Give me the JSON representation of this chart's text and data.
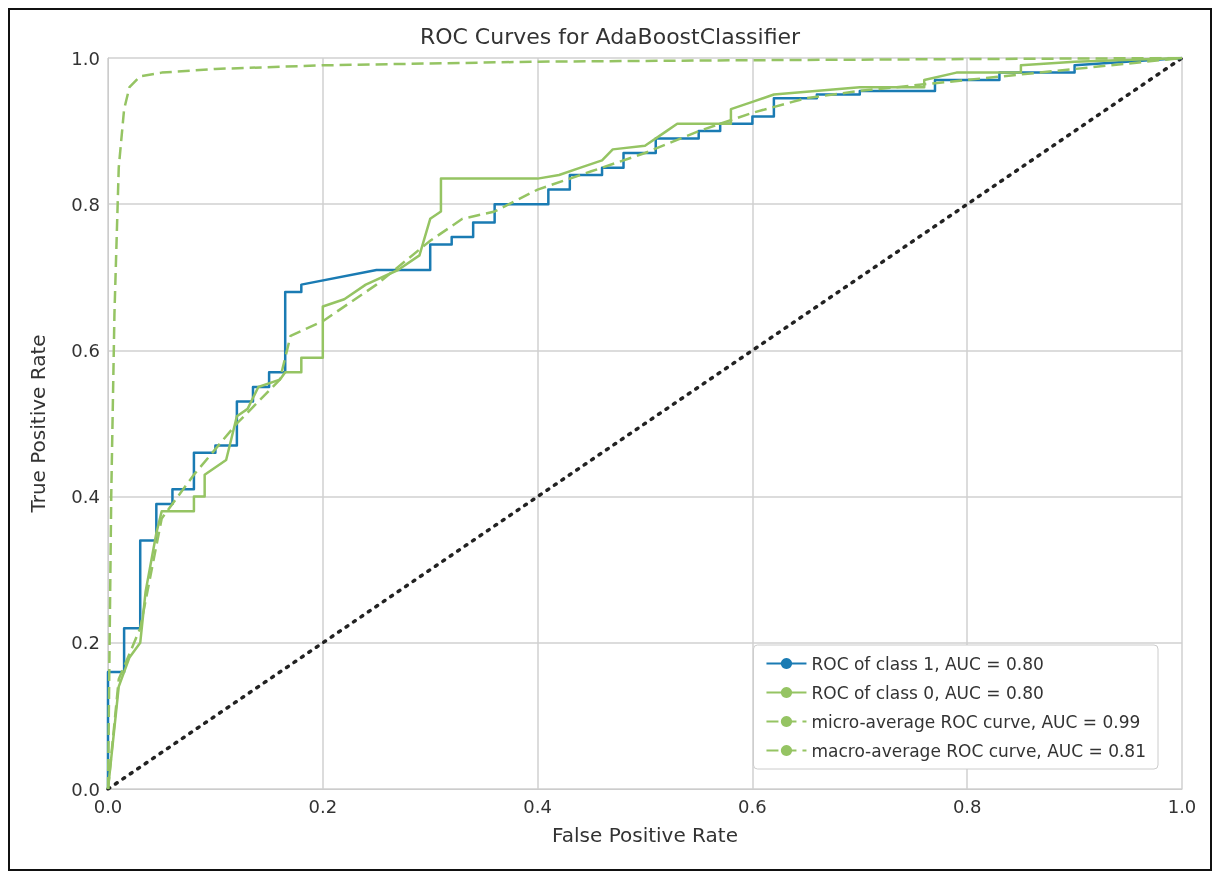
{
  "chart_data": {
    "type": "line",
    "title": "ROC Curves for AdaBoostClassifier",
    "xlabel": "False Positive Rate",
    "ylabel": "True Positive Rate",
    "xlim": [
      0,
      1
    ],
    "ylim": [
      0,
      1
    ],
    "xticks": [
      {
        "value": 0,
        "label": "0.0"
      },
      0.2,
      0.4,
      0.6,
      0.8,
      {
        "value": 1,
        "label": "1.0"
      }
    ],
    "yticks": [
      {
        "value": 0,
        "label": "0.0"
      },
      0.2,
      0.4,
      0.6,
      0.8,
      {
        "value": 1,
        "label": "1.0"
      }
    ],
    "grid": true,
    "legend": "bottom right",
    "marker": "none",
    "series": [
      {
        "name": "ROC of class 1, AUC = 0.80",
        "color": "#1a7bb3",
        "line_style": "solid",
        "x": [
          0,
          0,
          0.015,
          0.015,
          0.03,
          0.03,
          0.045,
          0.045,
          0.06,
          0.06,
          0.08,
          0.08,
          0.1,
          0.1,
          0.12,
          0.12,
          0.135,
          0.135,
          0.15,
          0.15,
          0.165,
          0.165,
          0.18,
          0.18,
          0.25,
          0.3,
          0.3,
          0.32,
          0.32,
          0.34,
          0.34,
          0.36,
          0.36,
          0.41,
          0.41,
          0.43,
          0.43,
          0.46,
          0.46,
          0.48,
          0.48,
          0.51,
          0.51,
          0.55,
          0.55,
          0.57,
          0.57,
          0.6,
          0.6,
          0.62,
          0.62,
          0.66,
          0.66,
          0.7,
          0.7,
          0.77,
          0.77,
          0.83,
          0.83,
          0.9,
          0.9,
          1
        ],
        "values": [
          0,
          0.16,
          0.16,
          0.22,
          0.22,
          0.34,
          0.34,
          0.39,
          0.39,
          0.41,
          0.41,
          0.46,
          0.46,
          0.47,
          0.47,
          0.53,
          0.53,
          0.55,
          0.55,
          0.57,
          0.57,
          0.68,
          0.68,
          0.69,
          0.71,
          0.71,
          0.745,
          0.745,
          0.755,
          0.755,
          0.775,
          0.775,
          0.8,
          0.8,
          0.82,
          0.82,
          0.84,
          0.84,
          0.85,
          0.85,
          0.87,
          0.87,
          0.89,
          0.89,
          0.9,
          0.9,
          0.91,
          0.91,
          0.92,
          0.92,
          0.945,
          0.945,
          0.95,
          0.95,
          0.955,
          0.955,
          0.97,
          0.97,
          0.98,
          0.98,
          0.99,
          1
        ]
      },
      {
        "name": "ROC of class 0, AUC = 0.80",
        "color": "#95c463",
        "line_style": "solid",
        "x": [
          0,
          0.01,
          0.02,
          0.03,
          0.035,
          0.045,
          0.05,
          0.08,
          0.08,
          0.09,
          0.09,
          0.11,
          0.12,
          0.13,
          0.14,
          0.16,
          0.165,
          0.18,
          0.18,
          0.2,
          0.2,
          0.22,
          0.24,
          0.27,
          0.29,
          0.3,
          0.31,
          0.31,
          0.4,
          0.42,
          0.44,
          0.46,
          0.47,
          0.5,
          0.52,
          0.53,
          0.58,
          0.58,
          0.6,
          0.62,
          0.7,
          0.76,
          0.76,
          0.79,
          0.85,
          0.85,
          0.9,
          1
        ],
        "values": [
          0,
          0.14,
          0.18,
          0.2,
          0.27,
          0.35,
          0.38,
          0.38,
          0.4,
          0.4,
          0.43,
          0.45,
          0.51,
          0.52,
          0.55,
          0.56,
          0.57,
          0.57,
          0.59,
          0.59,
          0.66,
          0.67,
          0.69,
          0.71,
          0.73,
          0.78,
          0.79,
          0.835,
          0.835,
          0.84,
          0.85,
          0.86,
          0.875,
          0.88,
          0.9,
          0.91,
          0.91,
          0.93,
          0.94,
          0.95,
          0.96,
          0.96,
          0.97,
          0.98,
          0.98,
          0.99,
          0.995,
          1
        ]
      },
      {
        "name": "micro-average ROC curve, AUC = 0.99",
        "color": "#95c463",
        "line_style": "dashed",
        "x": [
          0,
          0.003,
          0.006,
          0.01,
          0.015,
          0.02,
          0.03,
          0.05,
          0.1,
          0.2,
          0.4,
          0.6,
          1
        ],
        "values": [
          0,
          0.4,
          0.65,
          0.85,
          0.93,
          0.96,
          0.975,
          0.98,
          0.985,
          0.99,
          0.995,
          0.997,
          1
        ]
      },
      {
        "name": "macro-average ROC curve, AUC = 0.81",
        "color": "#95c463",
        "line_style": "dashed",
        "x": [
          0,
          0.01,
          0.03,
          0.05,
          0.08,
          0.12,
          0.16,
          0.17,
          0.2,
          0.25,
          0.3,
          0.33,
          0.36,
          0.4,
          0.45,
          0.5,
          0.55,
          0.6,
          0.65,
          0.7,
          0.8,
          0.9,
          1
        ],
        "values": [
          0,
          0.15,
          0.22,
          0.37,
          0.43,
          0.5,
          0.56,
          0.62,
          0.64,
          0.69,
          0.75,
          0.78,
          0.79,
          0.82,
          0.845,
          0.87,
          0.9,
          0.925,
          0.945,
          0.955,
          0.97,
          0.985,
          1
        ]
      },
      {
        "color": "#222222",
        "line_style": "dotted",
        "x": [
          0,
          1
        ],
        "values": [
          0,
          1
        ]
      }
    ]
  }
}
